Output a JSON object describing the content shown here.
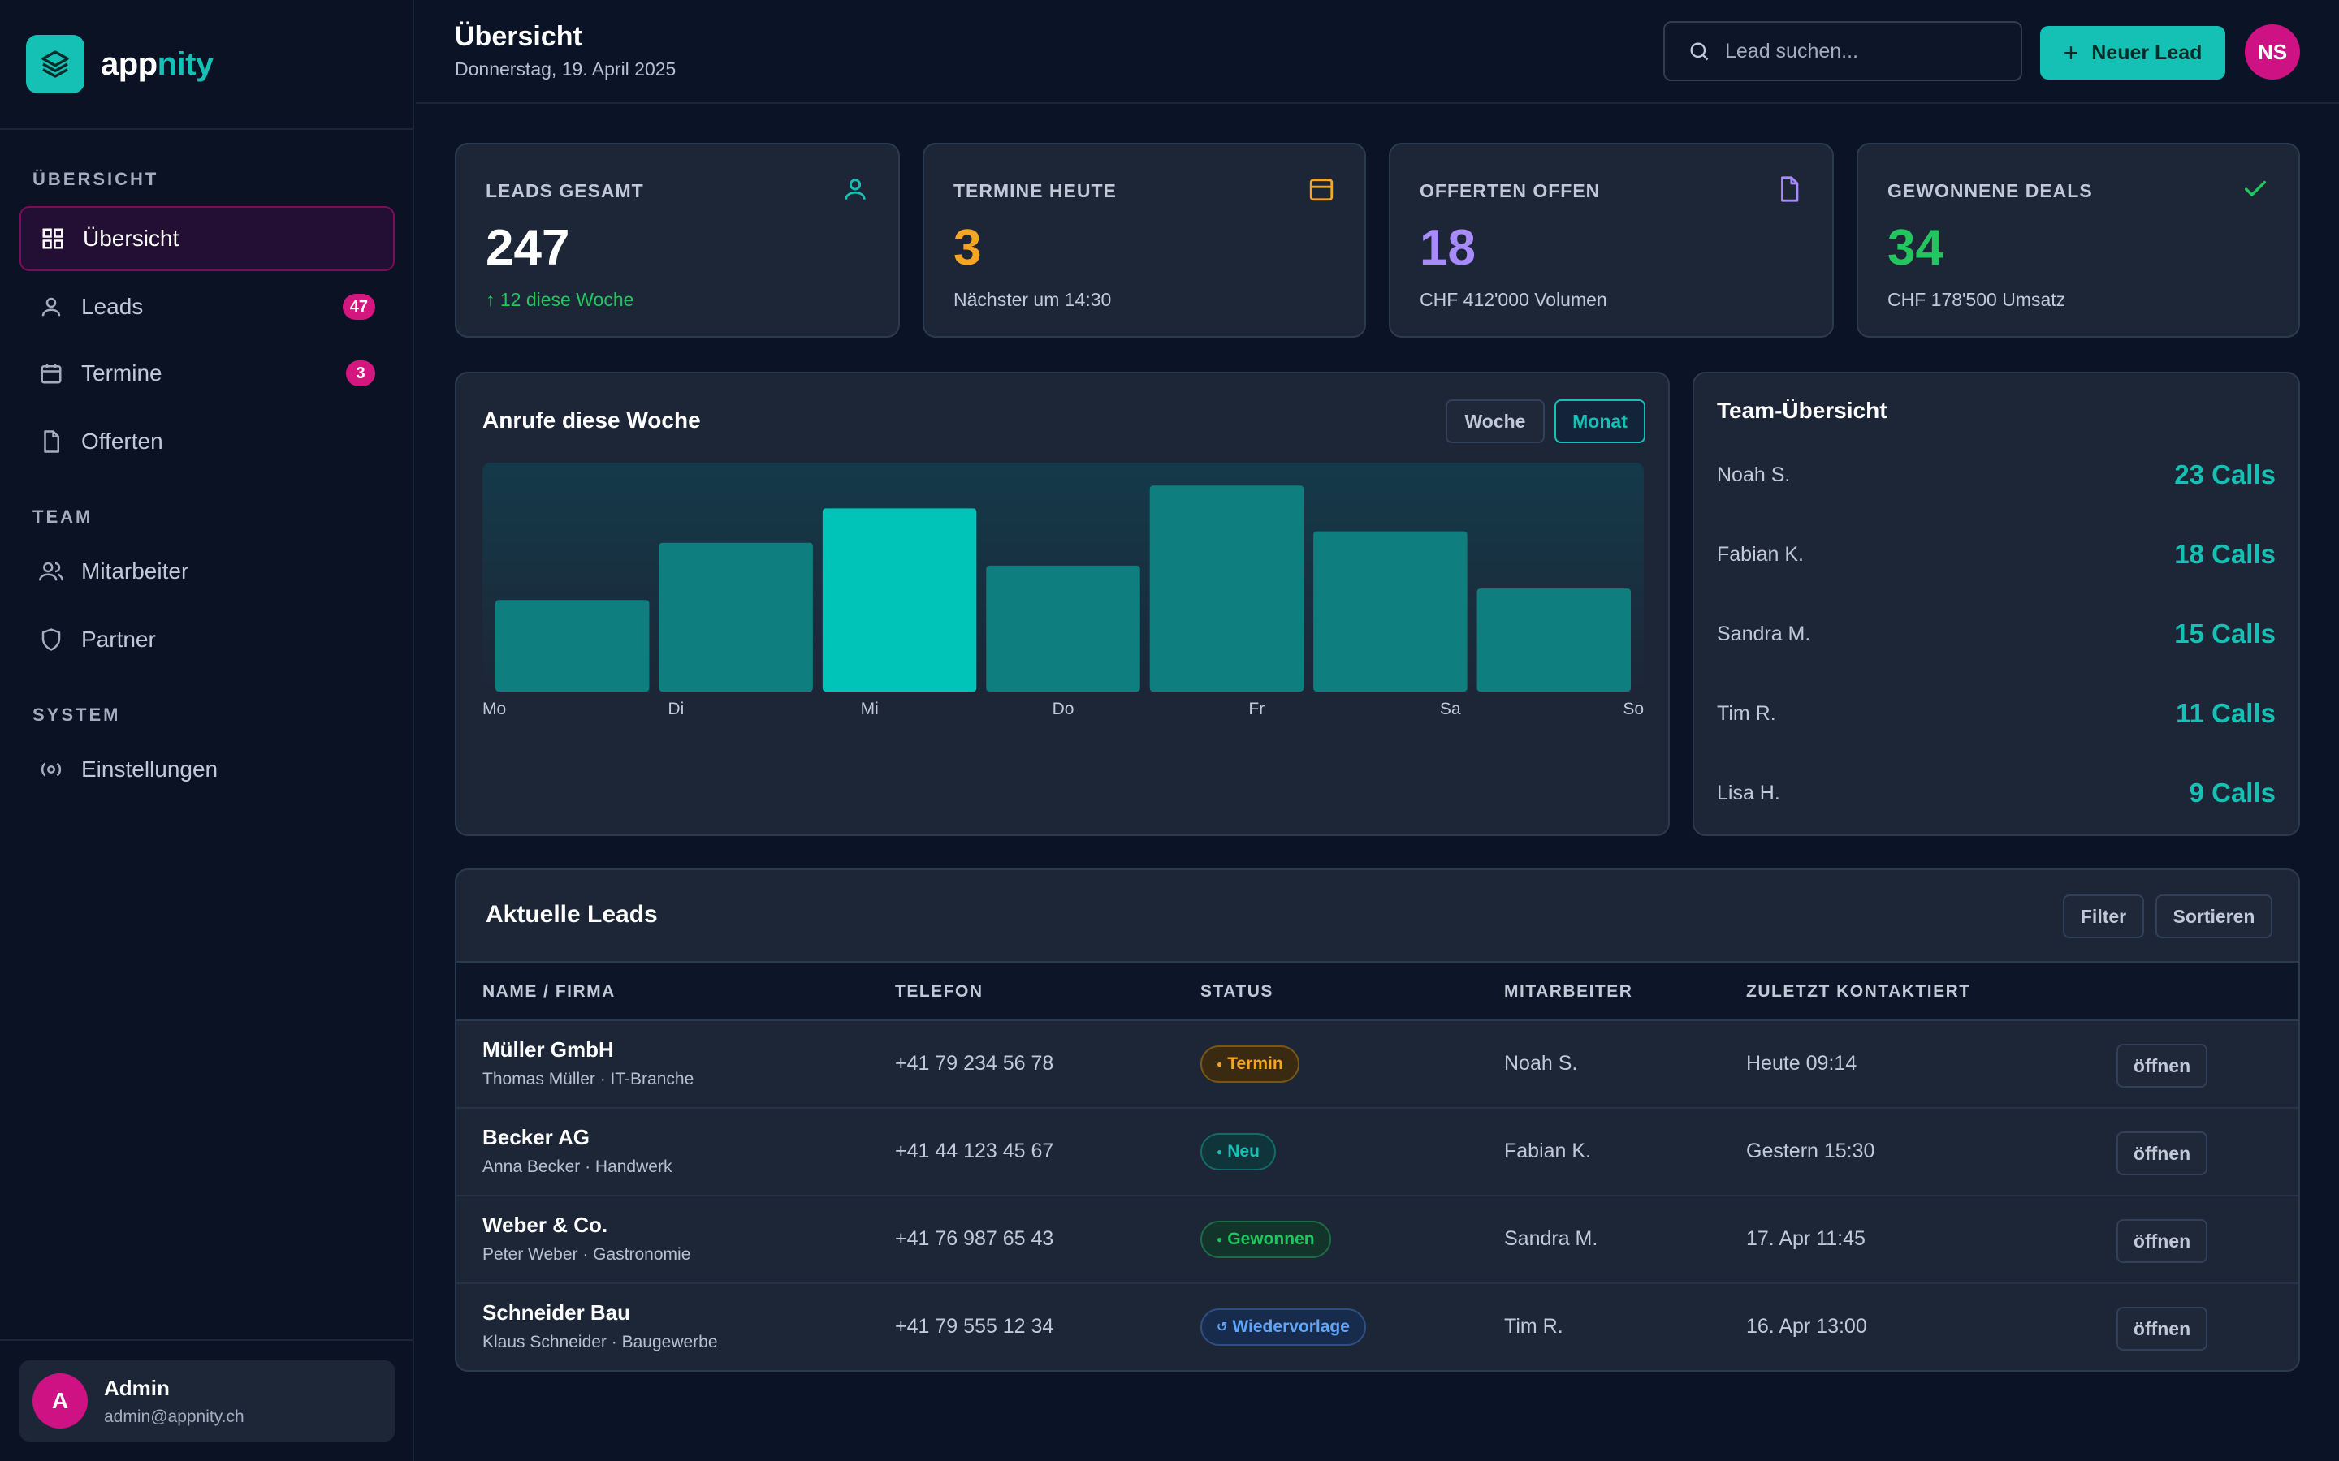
{
  "brand": {
    "name_part1": "app",
    "name_part2": "nity",
    "accent_color": "#14c1b4"
  },
  "sidebar": {
    "sections": [
      {
        "label": "ÜBERSICHT",
        "items": [
          {
            "label": "Übersicht",
            "icon": "grid-icon",
            "active": true
          },
          {
            "label": "Leads",
            "icon": "user-icon",
            "badge": "47"
          },
          {
            "label": "Termine",
            "icon": "calendar-icon",
            "badge": "3"
          },
          {
            "label": "Offerten",
            "icon": "document-icon"
          }
        ]
      },
      {
        "label": "TEAM",
        "items": [
          {
            "label": "Mitarbeiter",
            "icon": "users-icon"
          },
          {
            "label": "Partner",
            "icon": "shield-icon"
          }
        ]
      },
      {
        "label": "SYSTEM",
        "items": [
          {
            "label": "Einstellungen",
            "icon": "settings-icon"
          }
        ]
      }
    ],
    "user": {
      "initial": "A",
      "name": "Admin",
      "email": "admin@appnity.ch"
    }
  },
  "header": {
    "title": "Übersicht",
    "date": "Donnerstag, 19. April 2025",
    "search_placeholder": "Lead suchen...",
    "new_lead_label": "Neuer Lead",
    "avatar_initials": "NS"
  },
  "stats": [
    {
      "label": "LEADS GESAMT",
      "value": "247",
      "sub": "12 diese Woche",
      "sub_arrow": "↑",
      "value_color": "#ffffff",
      "sub_color": "#22c55e",
      "icon": "user-icon",
      "icon_color": "#14c1b4"
    },
    {
      "label": "TERMINE HEUTE",
      "value": "3",
      "sub": "Nächster um 14:30",
      "value_color": "#f5a524",
      "icon": "calendar-icon",
      "icon_color": "#f5a524"
    },
    {
      "label": "OFFERTEN OFFEN",
      "value": "18",
      "sub": "CHF 412'000 Volumen",
      "value_color": "#a78bfa",
      "icon": "document-icon",
      "icon_color": "#a78bfa"
    },
    {
      "label": "GEWONNENE DEALS",
      "value": "34",
      "sub": "CHF 178'500 Umsatz",
      "value_color": "#22c55e",
      "icon": "check-icon",
      "icon_color": "#22c55e"
    }
  ],
  "calls_chart": {
    "title": "Anrufe diese Woche",
    "toggle_week": "Woche",
    "toggle_month": "Monat",
    "active_toggle": "Monat"
  },
  "chart_data": {
    "type": "bar",
    "title": "Anrufe diese Woche",
    "categories": [
      "Mo",
      "Di",
      "Mi",
      "Do",
      "Fr",
      "Sa",
      "So"
    ],
    "values": [
      40,
      65,
      80,
      55,
      90,
      70,
      45
    ],
    "ylim": [
      0,
      100
    ],
    "highlight_category": "Mi",
    "grid": false,
    "legend": "none",
    "bar_color": "#0e7f7e",
    "highlight_color": "#01c4b8"
  },
  "team": {
    "title": "Team-Übersicht",
    "members": [
      {
        "name": "Noah S.",
        "calls": "23 Calls"
      },
      {
        "name": "Fabian K.",
        "calls": "18 Calls"
      },
      {
        "name": "Sandra M.",
        "calls": "15 Calls"
      },
      {
        "name": "Tim R.",
        "calls": "11 Calls"
      },
      {
        "name": "Lisa H.",
        "calls": "9 Calls"
      }
    ]
  },
  "leads_table": {
    "title": "Aktuelle Leads",
    "filter_label": "Filter",
    "sort_label": "Sortieren",
    "columns": [
      "NAME / FIRMA",
      "TELEFON",
      "STATUS",
      "MITARBEITER",
      "ZULETZT KONTAKTIERT"
    ],
    "rows": [
      {
        "company": "Müller GmbH",
        "contact": "Thomas Müller · IT-Branche",
        "phone": "+41 79 234 56 78",
        "status": "Termin",
        "status_icon": "●",
        "status_color": "#f5a524",
        "employee": "Noah S.",
        "last_contact": "Heute 09:14",
        "action": "öffnen"
      },
      {
        "company": "Becker AG",
        "contact": "Anna Becker · Handwerk",
        "phone": "+41 44 123 45 67",
        "status": "Neu",
        "status_icon": "●",
        "status_color": "#14c1b4",
        "employee": "Fabian K.",
        "last_contact": "Gestern 15:30",
        "action": "öffnen"
      },
      {
        "company": "Weber & Co.",
        "contact": "Peter Weber · Gastronomie",
        "phone": "+41 76 987 65 43",
        "status": "Gewonnen",
        "status_icon": "●",
        "status_color": "#22c55e",
        "employee": "Sandra M.",
        "last_contact": "17. Apr 11:45",
        "action": "öffnen"
      },
      {
        "company": "Schneider Bau",
        "contact": "Klaus Schneider · Baugewerbe",
        "phone": "+41 79 555 12 34",
        "status": "Wiedervorlage",
        "status_icon": "↺",
        "status_color": "#60a5fa",
        "employee": "Tim R.",
        "last_contact": "16. Apr 13:00",
        "action": "öffnen"
      }
    ]
  }
}
